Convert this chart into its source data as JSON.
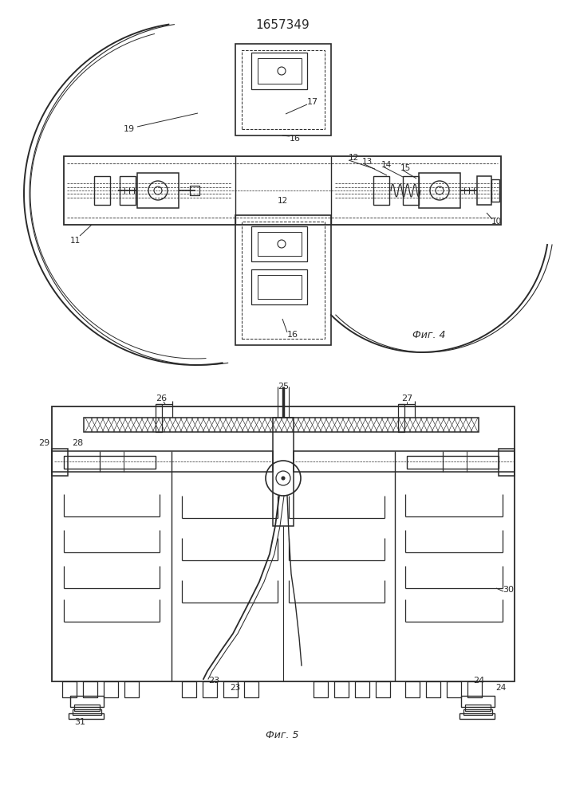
{
  "title": "1657349",
  "bg_color": "#ffffff",
  "line_color": "#2a2a2a",
  "fig4_label": "Фиг. 4",
  "fig5_label": "Фиг. 5"
}
